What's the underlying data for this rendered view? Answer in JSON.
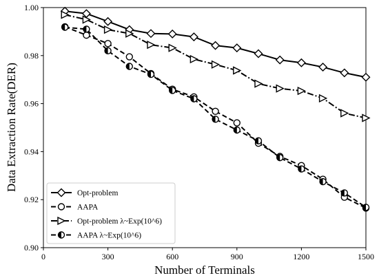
{
  "chart_data": {
    "type": "line",
    "title": "",
    "xlabel": "Number of Terminals",
    "ylabel": "Data Extraction Rate(DER)",
    "xlim": [
      0,
      1500
    ],
    "ylim": [
      0.9,
      1.0
    ],
    "xticks": [
      0,
      300,
      600,
      900,
      1200,
      1500
    ],
    "yticks": [
      0.9,
      0.92,
      0.94,
      0.96,
      0.98,
      1.0
    ],
    "xtick_labels": [
      "0",
      "300",
      "600",
      "900",
      "1200",
      "1500"
    ],
    "ytick_labels": [
      "0.90",
      "0.92",
      "0.94",
      "0.96",
      "0.98",
      "1.00"
    ],
    "grid": false,
    "legend_position": "bottom-left",
    "x": [
      100,
      200,
      300,
      400,
      500,
      600,
      700,
      800,
      900,
      1000,
      1100,
      1200,
      1300,
      1400,
      1500
    ],
    "series": [
      {
        "name": "Opt-problem",
        "marker": "diamond",
        "line_style": "solid",
        "values": [
          0.9985,
          0.9975,
          0.9942,
          0.9908,
          0.9892,
          0.989,
          0.9878,
          0.9842,
          0.9832,
          0.9808,
          0.9782,
          0.977,
          0.9752,
          0.9728,
          0.971
        ]
      },
      {
        "name": "AAPA",
        "marker": "circle",
        "line_style": "dashed",
        "values": [
          0.992,
          0.9885,
          0.985,
          0.9795,
          0.9725,
          0.966,
          0.9628,
          0.9568,
          0.952,
          0.9435,
          0.938,
          0.9342,
          0.9285,
          0.921,
          0.9165
        ]
      },
      {
        "name": "Opt-problem λ~Exp(10^6)",
        "marker": "triangle-right",
        "line_style": "dashdot",
        "values": [
          0.997,
          0.995,
          0.9908,
          0.9892,
          0.9845,
          0.9832,
          0.9785,
          0.9763,
          0.9738,
          0.9683,
          0.9663,
          0.9653,
          0.9622,
          0.956,
          0.954
        ]
      },
      {
        "name": "AAPA λ~Exp(10^6)",
        "marker": "half-circle",
        "line_style": "dashed",
        "values": [
          0.9918,
          0.991,
          0.982,
          0.9755,
          0.9722,
          0.9655,
          0.962,
          0.9535,
          0.949,
          0.9445,
          0.9375,
          0.9328,
          0.9275,
          0.9228,
          0.9168
        ]
      }
    ]
  }
}
